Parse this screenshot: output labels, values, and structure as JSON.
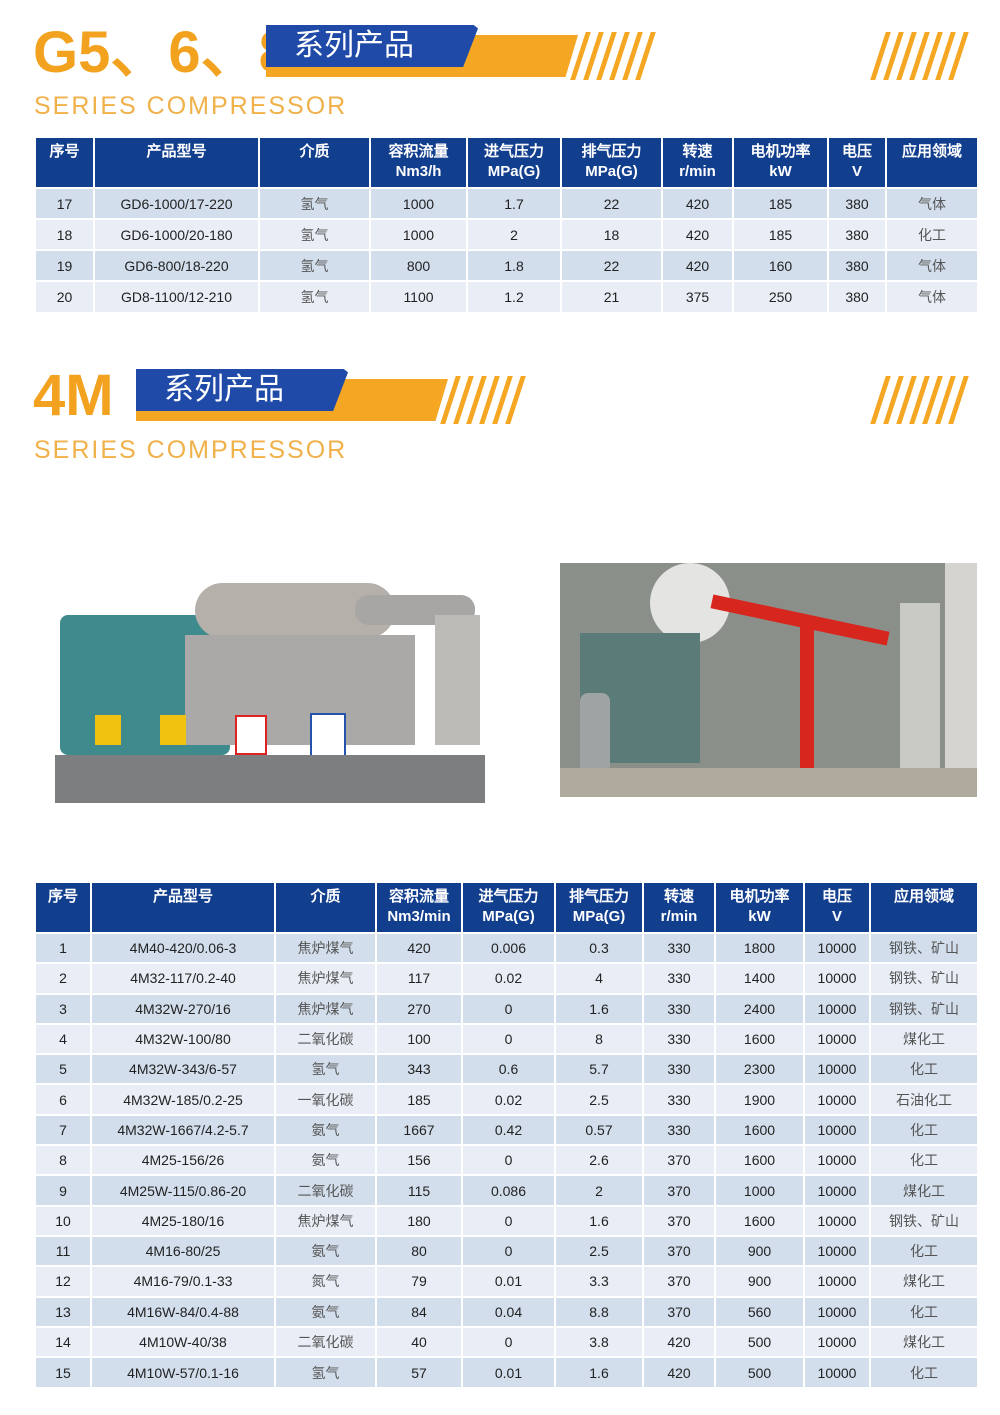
{
  "section1": {
    "title": "G5、6、8",
    "band": "系列产品",
    "subtitle": "SERIES  COMPRESSOR",
    "headers": [
      [
        "序号",
        ""
      ],
      [
        "产品型号",
        ""
      ],
      [
        "介质",
        ""
      ],
      [
        "容积流量",
        "Nm3/h"
      ],
      [
        "进气压力",
        "MPa(G)"
      ],
      [
        "排气压力",
        "MPa(G)"
      ],
      [
        "转速",
        "r/min"
      ],
      [
        "电机功率",
        "kW"
      ],
      [
        "电压",
        "V"
      ],
      [
        "应用领域",
        ""
      ]
    ],
    "rows": [
      [
        "17",
        "GD6-1000/17-220",
        "氢气",
        "1000",
        "1.7",
        "22",
        "420",
        "185",
        "380",
        "气体"
      ],
      [
        "18",
        "GD6-1000/20-180",
        "氢气",
        "1000",
        "2",
        "18",
        "420",
        "185",
        "380",
        "化工"
      ],
      [
        "19",
        "GD6-800/18-220",
        "氢气",
        "800",
        "1.8",
        "22",
        "420",
        "160",
        "380",
        "气体"
      ],
      [
        "20",
        "GD8-1100/12-210",
        "氢气",
        "1100",
        "1.2",
        "21",
        "375",
        "250",
        "380",
        "气体"
      ]
    ]
  },
  "section2": {
    "title": "4M",
    "band": "系列产品",
    "subtitle": "SERIES  COMPRESSOR",
    "headers": [
      [
        "序号",
        ""
      ],
      [
        "产品型号",
        ""
      ],
      [
        "介质",
        ""
      ],
      [
        "容积流量",
        "Nm3/min"
      ],
      [
        "进气压力",
        "MPa(G)"
      ],
      [
        "排气压力",
        "MPa(G)"
      ],
      [
        "转速",
        "r/min"
      ],
      [
        "电机功率",
        "kW"
      ],
      [
        "电压",
        "V"
      ],
      [
        "应用领域",
        ""
      ]
    ],
    "rows": [
      [
        "1",
        "4M40-420/0.06-3",
        "焦炉煤气",
        "420",
        "0.006",
        "0.3",
        "330",
        "1800",
        "10000",
        "钢铁、矿山"
      ],
      [
        "2",
        "4M32-117/0.2-40",
        "焦炉煤气",
        "117",
        "0.02",
        "4",
        "330",
        "1400",
        "10000",
        "钢铁、矿山"
      ],
      [
        "3",
        "4M32W-270/16",
        "焦炉煤气",
        "270",
        "0",
        "1.6",
        "330",
        "2400",
        "10000",
        "钢铁、矿山"
      ],
      [
        "4",
        "4M32W-100/80",
        "二氧化碳",
        "100",
        "0",
        "8",
        "330",
        "1600",
        "10000",
        "煤化工"
      ],
      [
        "5",
        "4M32W-343/6-57",
        "氢气",
        "343",
        "0.6",
        "5.7",
        "330",
        "2300",
        "10000",
        "化工"
      ],
      [
        "6",
        "4M32W-185/0.2-25",
        "一氧化碳",
        "185",
        "0.02",
        "2.5",
        "330",
        "1900",
        "10000",
        "石油化工"
      ],
      [
        "7",
        "4M32W-1667/4.2-5.7",
        "氨气",
        "1667",
        "0.42",
        "0.57",
        "330",
        "1600",
        "10000",
        "化工"
      ],
      [
        "8",
        "4M25-156/26",
        "氨气",
        "156",
        "0",
        "2.6",
        "370",
        "1600",
        "10000",
        "化工"
      ],
      [
        "9",
        "4M25W-115/0.86-20",
        "二氧化碳",
        "115",
        "0.086",
        "2",
        "370",
        "1000",
        "10000",
        "煤化工"
      ],
      [
        "10",
        "4M25-180/16",
        "焦炉煤气",
        "180",
        "0",
        "1.6",
        "370",
        "1600",
        "10000",
        "钢铁、矿山"
      ],
      [
        "11",
        "4M16-80/25",
        "氨气",
        "80",
        "0",
        "2.5",
        "370",
        "900",
        "10000",
        "化工"
      ],
      [
        "12",
        "4M16-79/0.1-33",
        "氮气",
        "79",
        "0.01",
        "3.3",
        "370",
        "900",
        "10000",
        "煤化工"
      ],
      [
        "13",
        "4M16W-84/0.4-88",
        "氨气",
        "84",
        "0.04",
        "8.8",
        "370",
        "560",
        "10000",
        "化工"
      ],
      [
        "14",
        "4M10W-40/38",
        "二氧化碳",
        "40",
        "0",
        "3.8",
        "420",
        "500",
        "10000",
        "煤化工"
      ],
      [
        "15",
        "4M10W-57/0.1-16",
        "氢气",
        "57",
        "0.01",
        "1.6",
        "420",
        "500",
        "10000",
        "化工"
      ]
    ]
  },
  "colors": {
    "orange": "#f5a623",
    "blue": "#1f4aa8",
    "header": "#123e8e"
  }
}
